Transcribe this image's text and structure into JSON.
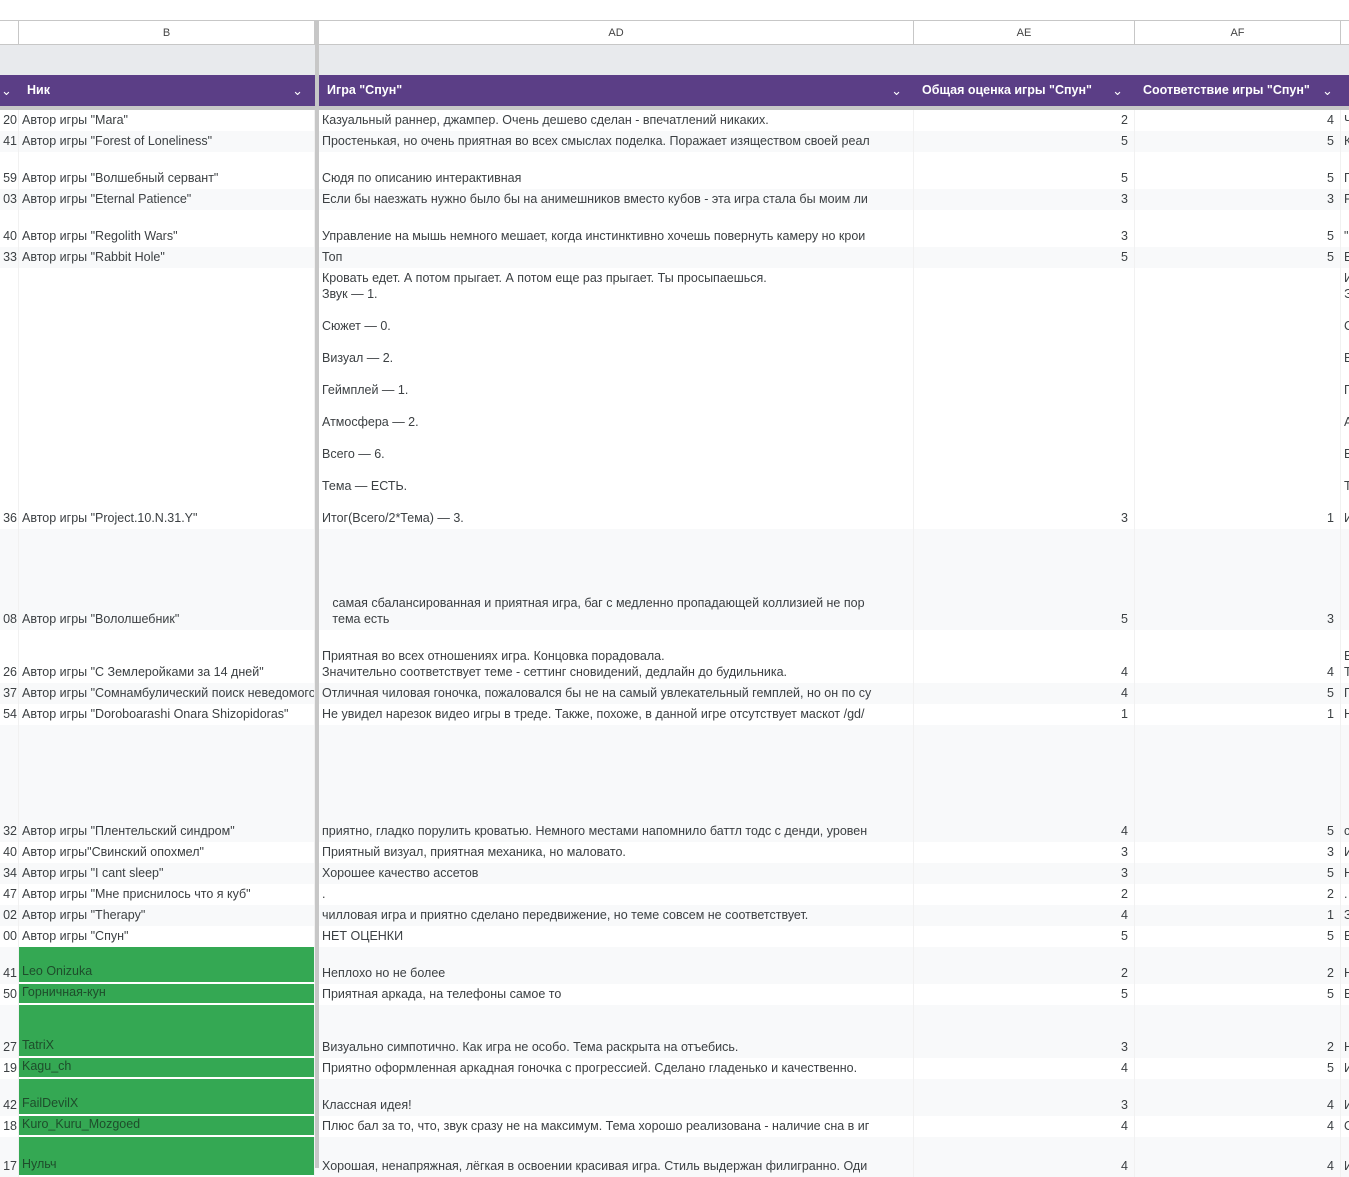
{
  "columns": {
    "a": "",
    "b": "B",
    "ad": "AD",
    "ae": "AE",
    "af": "AF"
  },
  "headers": {
    "nick": "Ник",
    "game": "Игра \"Спун\"",
    "score": "Общая оценка игры  \"Спун\"",
    "theme": "Соответствие игры   \"Спун\""
  },
  "colors": {
    "header": "#5b3e86",
    "highlight": "#34a853"
  },
  "rows": [
    {
      "n": "20",
      "nick": "Автор игры \"Mara\"",
      "review": "Казуальный раннер, джампер. Очень дешево сделан - впечатлений никаких.",
      "score": "2",
      "theme": "4",
      "next": "Ч"
    },
    {
      "n": "41",
      "nick": "Автор игры \"Forest of Loneliness\"",
      "review": "Простенькая, но очень приятная во всех смыслах поделка. Поражает изяществом своей реал",
      "score": "5",
      "theme": "5",
      "next": "К"
    },
    {
      "n": "59",
      "nick": "Автор игры \"Волшебный сервант\"",
      "review": "Сюдя по описанию интерактивная",
      "score": "5",
      "theme": "5",
      "next": "П"
    },
    {
      "n": "03",
      "nick": "Автор игры \"Eternal Patience\"",
      "review": "Если бы наезжать нужно было бы на анимешников вместо кубов - эта игра стала бы моим ли",
      "score": "3",
      "theme": "3",
      "next": "Р"
    },
    {
      "n": "40",
      "nick": "Автор игры \"Regolith Wars\"",
      "review": "Управление на мышь немного мешает, когда инстинктивно хочешь повернуть камеру но крои",
      "score": "3",
      "theme": "5",
      "next": "\""
    },
    {
      "n": "33",
      "nick": "Автор игры \"Rabbit Hole\"",
      "review": "Топ",
      "score": "5",
      "theme": "5",
      "next": "Е"
    },
    {
      "n": "36",
      "nick": "Автор игры \"Project.10.N.31.Y\"",
      "review": "Кровать едет. А потом прыгает. А потом еще раз прыгает. Ты просыпаешься.\nЗвук — 1.\n\nСюжет — 0.\n\nВизуал — 2.\n\nГеймплей — 1.\n\nАтмосфера — 2.\n\nВсего — 6.\n\nТема — ЕСТЬ.\n\nИтог(Всего/2*Тема) — 3.",
      "score": "3",
      "theme": "1",
      "next": "И\nЭ\n\nС\n\nВ\n\nГ\n\nА\n\nВ\n\nТ\n\nИ"
    },
    {
      "n": "08",
      "nick": "Автор игры \"Вололшебник\"",
      "review": "   самая сбалансированная и приятная игра, баг с медленно пропадающей коллизией не пор\n   тема есть",
      "score": "5",
      "theme": "3",
      "next": ""
    },
    {
      "n": "26",
      "nick": "Автор игры \"С Землеройками за 14 дней\"",
      "review": "Приятная во всех отношениях игра. Концовка порадовала.\nЗначительно соответствует теме - сеттинг сновидений, дедлайн до будильника.",
      "score": "4",
      "theme": "4",
      "next": "В\nТ"
    },
    {
      "n": "37",
      "nick": "Автор игры \"Сомнамбулический поиск неведомого\"",
      "review": "Отличная чиловая гоночка, пожаловался бы не на самый увлекательный гемплей, но он по су",
      "score": "4",
      "theme": "5",
      "next": "П"
    },
    {
      "n": "54",
      "nick": "Автор игры \"Doroboarashi Onara Shizopidoras\"",
      "review": "Не увидел нарезок видео игры в треде. Также, похоже, в данной игре отсутствует маскот /gd/",
      "score": "1",
      "theme": "1",
      "next": "Н"
    },
    {
      "n": "32",
      "nick": "Автор игры \"Плентельский синдром\"",
      "review": "приятно, гладко порулить кроватью. Немного местами напомнило баттл тодс с денди, уровен",
      "score": "4",
      "theme": "5",
      "next": "с"
    },
    {
      "n": "40",
      "nick": "Автор игры\"Свинский опохмел\"",
      "review": "Приятный визуал, приятная механика, но маловато.",
      "score": "3",
      "theme": "3",
      "next": "И"
    },
    {
      "n": "34",
      "nick": "Автор игры \"I cant sleep\"",
      "review": "Хорошее качество ассетов",
      "score": "3",
      "theme": "5",
      "next": "Н"
    },
    {
      "n": "47",
      "nick": "Автор игры \"Мне приснилось что я куб\"",
      "review": ".",
      "score": "2",
      "theme": "2",
      "next": "."
    },
    {
      "n": "02",
      "nick": "Автор игры \"Therapy\"",
      "review": "чилловая игра и приятно сделано передвижение, но теме совсем не соответствует.",
      "score": "4",
      "theme": "1",
      "next": "З"
    },
    {
      "n": "00",
      "nick": "Автор игры \"Спун\"",
      "review": "НЕТ ОЦЕНКИ",
      "score": "5",
      "theme": "5",
      "next": "В"
    },
    {
      "n": "41",
      "nick": "Leo Onizuka",
      "review": "Неплохо но не более",
      "score": "2",
      "theme": "2",
      "next": "Н",
      "green": true
    },
    {
      "n": "50",
      "nick": "Горничная-кун",
      "review": "Приятная аркада, на телефоны самое то",
      "score": "5",
      "theme": "5",
      "next": "В",
      "green": true
    },
    {
      "n": "27",
      "nick": "TatriX",
      "review": "Визуально симпотично. Как игра не особо. Тема раскрыта на отъебись.",
      "score": "3",
      "theme": "2",
      "next": "Н",
      "green": true
    },
    {
      "n": "19",
      "nick": "Kagu_ch",
      "review": "Приятно оформленная аркадная гоночка с прогрессией. Сделано гладенько и качественно.",
      "score": "4",
      "theme": "5",
      "next": "И",
      "green": true
    },
    {
      "n": "42",
      "nick": "FailDevilX",
      "review": "Классная идея!",
      "score": "3",
      "theme": "4",
      "next": "И",
      "green": true
    },
    {
      "n": "18",
      "nick": "Kuro_Kuru_Mozgoed",
      "review": "Плюс бал за то, что, звук сразу не на максимум. Тема хорошо реализована - наличие сна в иг",
      "score": "4",
      "theme": "4",
      "next": "О",
      "green": true
    },
    {
      "n": "17",
      "nick": "Нульч",
      "review": "Хорошая, ненапряжная, лёгкая в освоении красивая игра. Стиль выдержан филигранно. Оди",
      "score": "4",
      "theme": "4",
      "next": "И",
      "green": true
    }
  ]
}
